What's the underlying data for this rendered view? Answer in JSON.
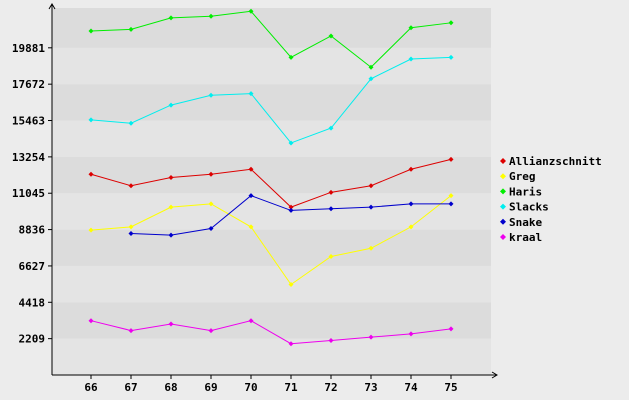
{
  "chart_data": {
    "type": "line",
    "title": "",
    "xlabel": "",
    "ylabel": "",
    "x": [
      66,
      67,
      68,
      69,
      70,
      71,
      72,
      73,
      74,
      75
    ],
    "ylim": [
      0,
      22300
    ],
    "yticks": [
      2209,
      4418,
      6627,
      8836,
      11045,
      13254,
      15463,
      17672,
      19881
    ],
    "grid": true,
    "legend": "right",
    "series": [
      {
        "name": "Allianzschnitt",
        "color": "#dd0000",
        "values": [
          12200,
          11500,
          12000,
          12200,
          12500,
          10200,
          11100,
          11500,
          12500,
          13100
        ]
      },
      {
        "name": "Greg",
        "color": "#ffff00",
        "values": [
          8800,
          9000,
          10200,
          10400,
          9000,
          5500,
          7200,
          7700,
          9000,
          10900
        ]
      },
      {
        "name": "Haris",
        "color": "#00ee00",
        "values": [
          20900,
          21000,
          21700,
          21800,
          22100,
          19300,
          20600,
          18700,
          21100,
          21400
        ]
      },
      {
        "name": "Slacks",
        "color": "#00eeee",
        "values": [
          15500,
          15300,
          16400,
          17000,
          17100,
          14100,
          15000,
          18000,
          19200,
          19300
        ]
      },
      {
        "name": "Snake",
        "color": "#0000cc",
        "values": [
          null,
          8600,
          8500,
          8900,
          10900,
          10000,
          10100,
          10200,
          10400,
          10400
        ]
      },
      {
        "name": "kraal",
        "color": "#ee00ee",
        "values": [
          3300,
          2700,
          3100,
          2700,
          3300,
          1900,
          2100,
          2300,
          2500,
          2800
        ]
      }
    ]
  }
}
